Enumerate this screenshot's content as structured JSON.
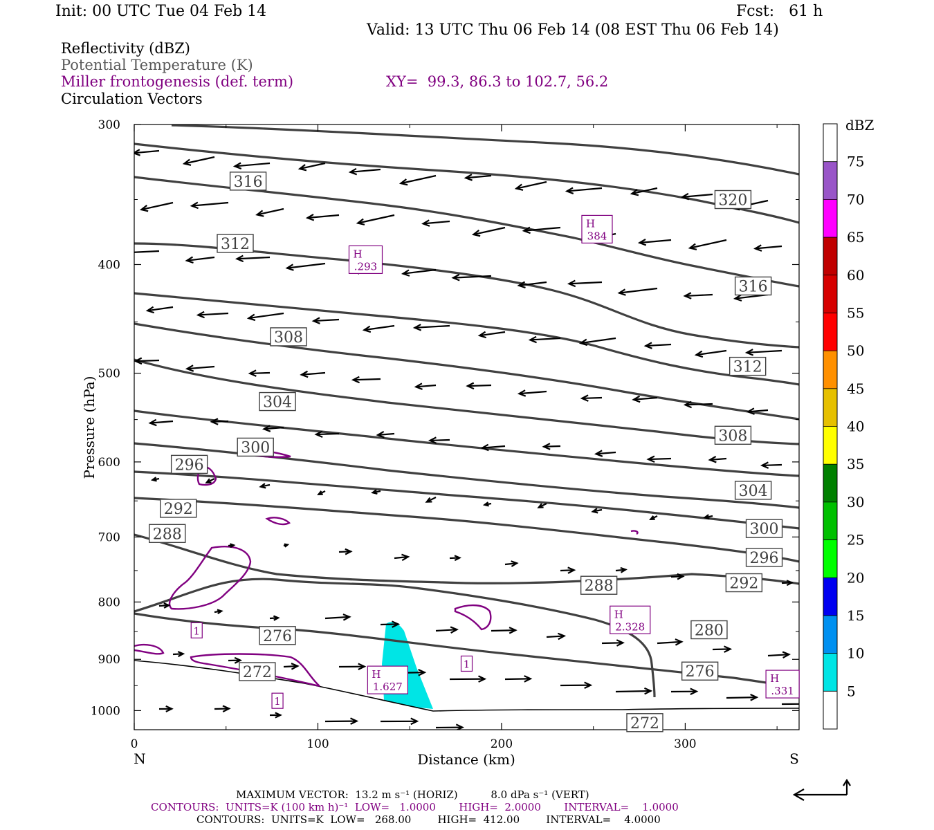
{
  "header": {
    "init": "Init: 00 UTC Tue 04 Feb 14",
    "fcst": "Fcst:   61 h",
    "valid": "Valid: 13 UTC Thu 06 Feb 14 (08 EST Thu 06 Feb 14)"
  },
  "legend": {
    "reflectivity": "Reflectivity (dBZ)",
    "theta": "Potential Temperature (K)",
    "frontogenesis": "Miller frontogenesis (def. term)",
    "xy": "XY=  99.3, 86.3 to 102.7, 56.2",
    "vectors": "Circulation Vectors"
  },
  "footer": {
    "max_vector": "MAXIMUM VECTOR:  13.2 m s⁻¹ (HORIZ)          8.0 dPa s⁻¹ (VERT)",
    "contours1": "CONTOURS:  UNITS=K (100 km h)⁻¹  LOW=   1.0000       HIGH=  2.0000       INTERVAL=    1.0000",
    "contours2": "CONTOURS:  UNITS=K  LOW=   268.00        HIGH=  412.00        INTERVAL=    4.0000"
  },
  "colors": {
    "theta": "#404040",
    "fronto": "#800080",
    "refl_5_10": "#00e5e5"
  },
  "chart_data": {
    "type": "cross-section",
    "xlabel": "Distance (km)",
    "ylabel": "Pressure (hPa)",
    "x_ticks": [
      0,
      100,
      200,
      300
    ],
    "y_ticks": [
      300,
      400,
      500,
      600,
      700,
      800,
      900,
      1000
    ],
    "xlim": [
      0,
      362
    ],
    "ylim": [
      300,
      1040
    ],
    "y_log": true,
    "left_end": "N",
    "right_end": "S",
    "colorbar": {
      "unit": "dBZ",
      "levels": [
        5,
        10,
        15,
        20,
        25,
        30,
        35,
        40,
        45,
        50,
        55,
        60,
        65,
        70,
        75
      ],
      "colors": [
        "#ffffff",
        "#00e5e5",
        "#0090f0",
        "#0000f0",
        "#00ff00",
        "#00c000",
        "#008000",
        "#ffff00",
        "#e6c000",
        "#ff9000",
        "#ff0000",
        "#d60000",
        "#c00000",
        "#ff00ff",
        "#9955c8",
        "#ffffff"
      ]
    },
    "theta_labels": [
      {
        "value": "316",
        "x": 62,
        "p": 337
      },
      {
        "value": "312",
        "x": 55,
        "p": 383
      },
      {
        "value": "308",
        "x": 84,
        "p": 464
      },
      {
        "value": "304",
        "x": 78,
        "p": 530
      },
      {
        "value": "300",
        "x": 66,
        "p": 582
      },
      {
        "value": "296",
        "x": 30,
        "p": 603
      },
      {
        "value": "292",
        "x": 24,
        "p": 660
      },
      {
        "value": "288",
        "x": 18,
        "p": 695
      },
      {
        "value": "276",
        "x": 78,
        "p": 857
      },
      {
        "value": "272",
        "x": 67,
        "p": 923
      },
      {
        "value": "320",
        "x": 326,
        "p": 350
      },
      {
        "value": "316",
        "x": 337,
        "p": 418
      },
      {
        "value": "312",
        "x": 334,
        "p": 493
      },
      {
        "value": "308",
        "x": 326,
        "p": 568
      },
      {
        "value": "304",
        "x": 337,
        "p": 636
      },
      {
        "value": "300",
        "x": 343,
        "p": 688
      },
      {
        "value": "296",
        "x": 343,
        "p": 730
      },
      {
        "value": "292",
        "x": 332,
        "p": 769
      },
      {
        "value": "288",
        "x": 253,
        "p": 773
      },
      {
        "value": "280",
        "x": 313,
        "p": 847
      },
      {
        "value": "276",
        "x": 308,
        "p": 922
      },
      {
        "value": "272",
        "x": 278,
        "p": 1025
      }
    ],
    "extrema": [
      {
        "kind": "H",
        "value": ".293",
        "x": 126,
        "p": 396
      },
      {
        "kind": "H",
        "value": "384",
        "x": 252,
        "p": 372
      },
      {
        "kind": "H",
        "value": "2.328",
        "x": 270,
        "p": 830
      },
      {
        "kind": "H",
        "value": "1.627",
        "x": 138,
        "p": 939
      },
      {
        "kind": "H",
        "value": ".331",
        "x": 353,
        "p": 947
      }
    ],
    "fronto_labels": [
      {
        "value": "1",
        "x": 34,
        "p": 848
      },
      {
        "value": "1",
        "x": 181,
        "p": 908
      },
      {
        "value": "1",
        "x": 78,
        "p": 980
      }
    ]
  }
}
